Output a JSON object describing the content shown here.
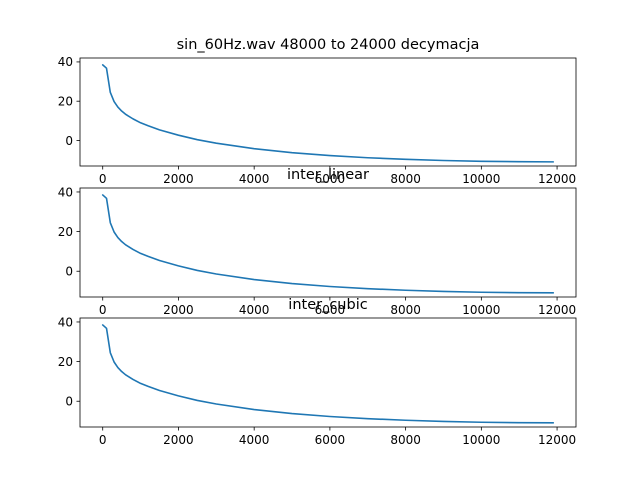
{
  "figure": {
    "background": "#ffffff"
  },
  "chart_data": [
    {
      "type": "line",
      "title": "sin_60Hz.wav 48000 to 24000 decymacja",
      "xlabel": "",
      "ylabel": "",
      "xlim": [
        -600,
        12500
      ],
      "ylim": [
        -13,
        42
      ],
      "xticks": [
        0,
        2000,
        4000,
        6000,
        8000,
        10000,
        12000
      ],
      "yticks": [
        0,
        20,
        40
      ],
      "grid": false,
      "color": "#1f77b4",
      "x": [
        0,
        100,
        200,
        300,
        400,
        500,
        600,
        800,
        1000,
        1200,
        1500,
        2000,
        2500,
        3000,
        4000,
        5000,
        6000,
        7000,
        8000,
        9000,
        10000,
        11000,
        11900
      ],
      "y": [
        38.5,
        36.8,
        24.5,
        19.8,
        17.0,
        15.0,
        13.4,
        11.0,
        9.0,
        7.5,
        5.4,
        2.7,
        0.4,
        -1.4,
        -4.2,
        -6.2,
        -7.7,
        -8.8,
        -9.6,
        -10.2,
        -10.6,
        -10.8,
        -10.9
      ]
    },
    {
      "type": "line",
      "title": "inter_linear",
      "xlabel": "",
      "ylabel": "",
      "xlim": [
        -600,
        12500
      ],
      "ylim": [
        -13,
        42
      ],
      "xticks": [
        0,
        2000,
        4000,
        6000,
        8000,
        10000,
        12000
      ],
      "yticks": [
        0,
        20,
        40
      ],
      "grid": false,
      "color": "#1f77b4",
      "x": [
        0,
        100,
        200,
        300,
        400,
        500,
        600,
        800,
        1000,
        1200,
        1500,
        2000,
        2500,
        3000,
        4000,
        5000,
        6000,
        7000,
        8000,
        9000,
        10000,
        11000,
        11900
      ],
      "y": [
        38.5,
        36.8,
        24.5,
        19.8,
        17.0,
        15.0,
        13.4,
        11.0,
        9.0,
        7.5,
        5.4,
        2.7,
        0.4,
        -1.4,
        -4.2,
        -6.2,
        -7.7,
        -8.8,
        -9.6,
        -10.2,
        -10.6,
        -10.8,
        -10.9
      ]
    },
    {
      "type": "line",
      "title": "inter_cubic",
      "xlabel": "",
      "ylabel": "",
      "xlim": [
        -600,
        12500
      ],
      "ylim": [
        -13,
        42
      ],
      "xticks": [
        0,
        2000,
        4000,
        6000,
        8000,
        10000,
        12000
      ],
      "yticks": [
        0,
        20,
        40
      ],
      "grid": false,
      "color": "#1f77b4",
      "x": [
        0,
        100,
        200,
        300,
        400,
        500,
        600,
        800,
        1000,
        1200,
        1500,
        2000,
        2500,
        3000,
        4000,
        5000,
        6000,
        7000,
        8000,
        9000,
        10000,
        11000,
        11900
      ],
      "y": [
        38.5,
        36.8,
        24.5,
        19.8,
        17.0,
        15.0,
        13.4,
        11.0,
        9.0,
        7.5,
        5.4,
        2.7,
        0.4,
        -1.4,
        -4.2,
        -6.2,
        -7.7,
        -8.8,
        -9.6,
        -10.2,
        -10.6,
        -10.8,
        -10.9
      ]
    }
  ]
}
